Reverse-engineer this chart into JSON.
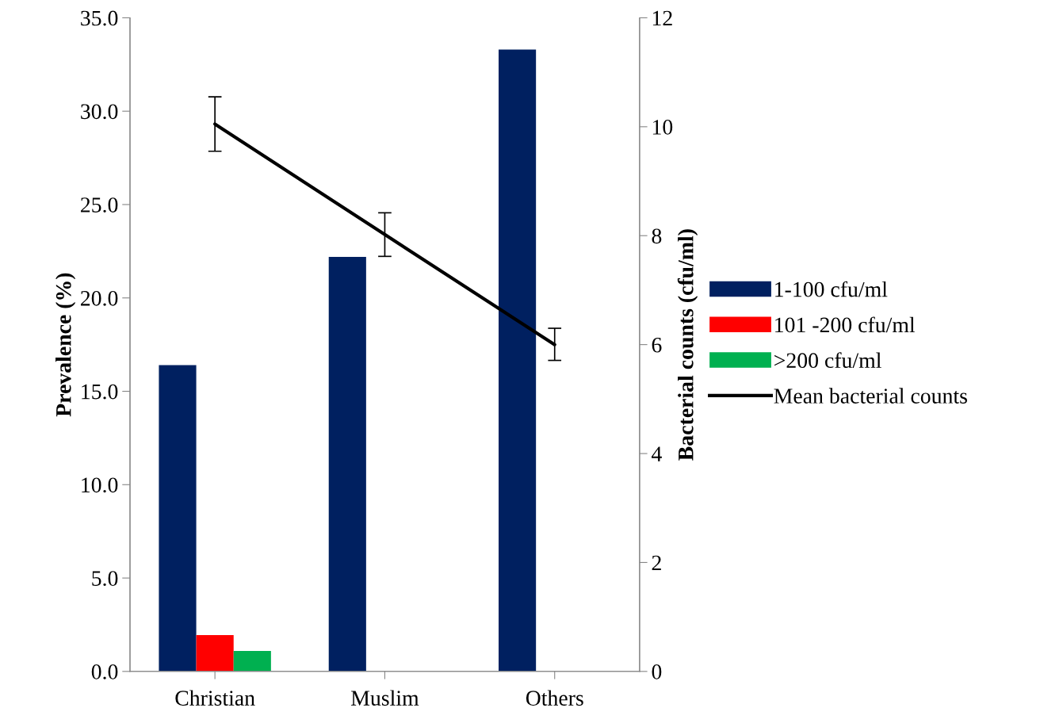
{
  "chart_data": {
    "type": "bar",
    "categories": [
      "Christian",
      "Muslim",
      "Others"
    ],
    "ylabel": "Prevalence (%)",
    "y2label": "Bacterial counts (cfu/ml)",
    "ylim": [
      0,
      35
    ],
    "yticks": [
      {
        "value": 0,
        "label": "0.0"
      },
      {
        "value": 5,
        "label": "5.0"
      },
      {
        "value": 10,
        "label": "10.0"
      },
      {
        "value": 15,
        "label": "15.0"
      },
      {
        "value": 20,
        "label": "20.0"
      },
      {
        "value": 25,
        "label": "25.0"
      },
      {
        "value": 30,
        "label": "30.0"
      },
      {
        "value": 35,
        "label": "35.0"
      }
    ],
    "y2lim": [
      0,
      12
    ],
    "y2ticks": [
      0,
      2,
      4,
      6,
      8,
      10,
      12
    ],
    "series": [
      {
        "name": "1-100 cfu/ml",
        "color": "#002060",
        "values": [
          16.4,
          22.2,
          33.3
        ]
      },
      {
        "name": "101 -200 cfu/ml",
        "color": "#ff0000",
        "values": [
          1.95,
          null,
          null
        ]
      },
      {
        "name": ">200 cfu/ml",
        "color": "#00b050",
        "values": [
          1.1,
          null,
          null
        ]
      },
      {
        "name": "Mean bacterial counts",
        "type": "line",
        "axis": "y2",
        "color": "#000000",
        "values": [
          10.05,
          8.02,
          6.0
        ],
        "errors": [
          [
            9.55,
            10.55
          ],
          [
            7.62,
            8.42
          ],
          [
            5.71,
            6.3
          ]
        ]
      }
    ],
    "legend": "right",
    "grid": false,
    "marker": "none",
    "line_style": "solid"
  }
}
